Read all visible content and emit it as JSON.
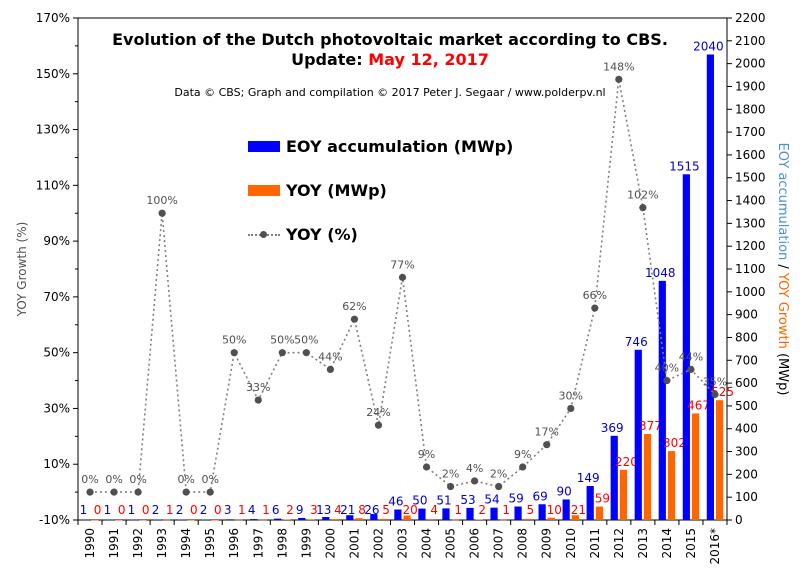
{
  "title": {
    "line1": "Evolution of the Dutch photovoltaic market according to CBS.",
    "line2_prefix": "Update: ",
    "line2_date": "May 12, 2017",
    "source": "Data © CBS; Graph and compilation © 2017 Peter J. Segaar / www.polderpv.nl"
  },
  "legend": {
    "eoy": "EOY accumulation (MWp)",
    "yoy": "YOY (MWp)",
    "pct": "YOY (%)"
  },
  "axes": {
    "left_label": "YOY Growth (%)",
    "right_label_part1": "EOY accumulation",
    "right_label_sep": " / ",
    "right_label_part2": "YOY Growth",
    "right_label_part3": " (MWp)"
  },
  "colors": {
    "eoy_bar": "#0000ff",
    "yoy_bar": "#ff6600",
    "pct_line": "#808080",
    "pct_marker": "#505050",
    "eoy_label": "#0000cc",
    "yoy_label": "#ff0000",
    "pct_label": "#505050",
    "right_axis_blue": "#4a90d9",
    "right_axis_orange": "#ff6600"
  },
  "chart_data": {
    "type": "bar",
    "categories": [
      "1990",
      "1991",
      "1992",
      "1993",
      "1994",
      "1995",
      "1996",
      "1997",
      "1998",
      "1999",
      "2000",
      "2001",
      "2002",
      "2003",
      "2004",
      "2005",
      "2006",
      "2007",
      "2008",
      "2009",
      "2010",
      "2011",
      "2012",
      "2013",
      "2014",
      "2015",
      "2016*"
    ],
    "series": [
      {
        "name": "EOY accumulation (MWp)",
        "axis": "right",
        "type": "bar",
        "values": [
          1,
          1,
          1,
          2,
          2,
          2,
          3,
          4,
          6,
          9,
          13,
          21,
          26,
          46,
          50,
          51,
          53,
          54,
          59,
          69,
          90,
          149,
          369,
          746,
          1048,
          1515,
          2040
        ]
      },
      {
        "name": "YOY (MWp)",
        "axis": "right",
        "type": "bar",
        "values": [
          0,
          0,
          0,
          1,
          0,
          0,
          1,
          1,
          2,
          3,
          4,
          8,
          5,
          20,
          4,
          1,
          2,
          1,
          5,
          10,
          21,
          59,
          220,
          377,
          302,
          467,
          525
        ]
      },
      {
        "name": "YOY (%)",
        "axis": "left",
        "type": "line",
        "values": [
          0,
          0,
          0,
          100,
          0,
          0,
          50,
          33,
          50,
          50,
          44,
          62,
          24,
          77,
          9,
          2,
          4,
          2,
          9,
          17,
          30,
          66,
          148,
          102,
          40,
          44,
          35
        ],
        "labels": [
          "0%",
          "0%",
          "0%",
          "100%",
          "0%",
          "0%",
          "50%",
          "33%",
          "50%",
          "50%",
          "44%",
          "62%",
          "24%",
          "77%",
          "9%",
          "2%",
          "4%",
          "2%",
          "9%",
          "17%",
          "30%",
          "66%",
          "148%",
          "102%",
          "40%",
          "44%",
          "35%"
        ]
      }
    ],
    "y_left": {
      "min": -10,
      "max": 170,
      "step": 20,
      "ticks": [
        "-10%",
        "10%",
        "30%",
        "50%",
        "70%",
        "90%",
        "110%",
        "130%",
        "150%",
        "170%"
      ]
    },
    "y_right": {
      "min": 0,
      "max": 2200,
      "step": 100,
      "ticks": [
        "0",
        "100",
        "200",
        "300",
        "400",
        "500",
        "600",
        "700",
        "800",
        "900",
        "1000",
        "1100",
        "1200",
        "1300",
        "1400",
        "1500",
        "1600",
        "1700",
        "1800",
        "1900",
        "2000",
        "2100",
        "2200"
      ]
    },
    "grid": false,
    "legend_position": "top-left"
  }
}
